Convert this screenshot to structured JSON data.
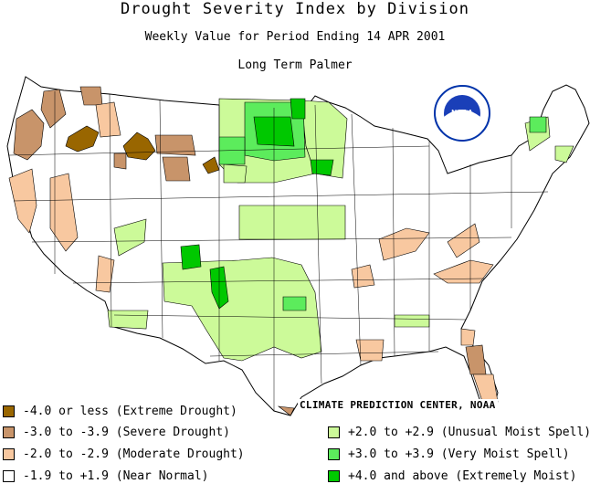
{
  "titles": {
    "main": "Drought Severity Index by Division",
    "period": "Weekly Value for Period Ending 14 APR 2001",
    "index": "Long Term Palmer"
  },
  "logo_text": "NOAA",
  "credit": "CLIMATE PREDICTION CENTER, NOAA",
  "colors": {
    "extreme_drought": "#996600",
    "severe_drought": "#c8946a",
    "moderate_drought": "#f8c8a0",
    "near_normal": "#ffffff",
    "unusual_moist": "#ccfa99",
    "very_moist": "#5cec5c",
    "extremely_moist": "#00c800"
  },
  "legend": [
    {
      "label": "-4.0 or less (Extreme Drought)",
      "color": "#996600"
    },
    {
      "label": "-3.0 to -3.9 (Severe Drought)",
      "color": "#c8946a"
    },
    {
      "label": "-2.0 to -2.9 (Moderate Drought)",
      "color": "#f8c8a0"
    },
    {
      "label": "-1.9 to +1.9 (Near Normal)",
      "color": "#ffffff"
    },
    {
      "label": "+2.0 to +2.9 (Unusual Moist Spell)",
      "color": "#ccfa99"
    },
    {
      "label": "+3.0 to +3.9 (Very Moist Spell)",
      "color": "#5cec5c"
    },
    {
      "label": "+4.0 and above (Extremely Moist)",
      "color": "#00c800"
    }
  ]
}
